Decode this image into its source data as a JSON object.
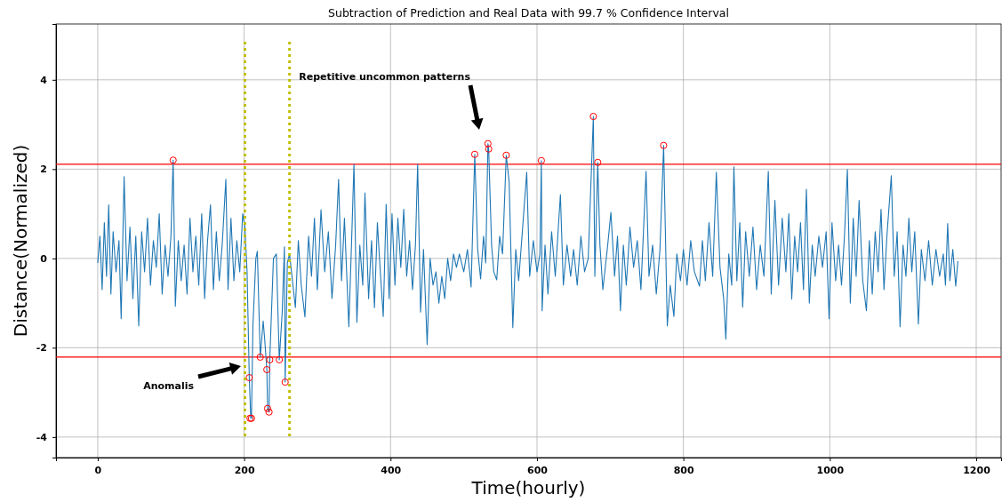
{
  "chart_data": {
    "type": "line",
    "title": "Subtraction of Prediction and Real Data with 99.7 % Confidence Interval",
    "xlabel": "Time(hourly)",
    "ylabel": "Distance(Normalized)",
    "xlim": [
      -57,
      1234
    ],
    "ylim": [
      -4.46,
      5.25
    ],
    "xticks": [
      0,
      200,
      400,
      600,
      800,
      1000,
      1200
    ],
    "yticks": [
      -4,
      -2,
      0,
      2,
      4
    ],
    "grid": true,
    "series": [
      {
        "color": "#1f77b4",
        "line_style": "solid",
        "x": [
          0,
          3,
          6,
          9,
          12,
          15,
          18,
          21,
          25,
          29,
          32,
          36,
          40,
          44,
          48,
          52,
          56,
          60,
          64,
          68,
          72,
          76,
          80,
          84,
          88,
          92,
          96,
          100,
          103,
          106,
          110,
          114,
          118,
          122,
          126,
          130,
          134,
          138,
          142,
          146,
          150,
          154,
          158,
          162,
          166,
          170,
          175,
          178,
          182,
          186,
          190,
          194,
          198,
          201,
          204,
          207,
          209,
          210,
          212,
          216,
          218,
          222,
          226,
          228,
          231,
          232,
          234,
          235,
          240,
          244,
          248,
          252,
          255,
          256,
          259,
          262,
          266,
          270,
          274,
          278,
          283,
          288,
          292,
          296,
          300,
          305,
          310,
          315,
          320,
          325,
          329,
          333,
          337,
          343,
          347,
          350,
          354,
          358,
          362,
          365,
          370,
          374,
          378,
          382,
          386,
          390,
          394,
          398,
          402,
          406,
          410,
          414,
          418,
          422,
          426,
          430,
          434,
          437,
          441,
          445,
          450,
          454,
          458,
          462,
          466,
          470,
          474,
          478,
          482,
          486,
          490,
          494,
          500,
          505,
          510,
          515,
          519,
          523,
          527,
          530,
          533,
          534,
          538,
          541,
          545,
          549,
          553,
          558,
          562,
          567,
          571,
          575,
          580,
          586,
          590,
          595,
          600,
          604,
          606,
          607,
          611,
          615,
          620,
          625,
          632,
          636,
          641,
          646,
          650,
          655,
          660,
          665,
          670,
          677,
          679,
          683,
          686,
          690,
          696,
          701,
          706,
          710,
          714,
          718,
          722,
          727,
          732,
          737,
          742,
          749,
          753,
          758,
          763,
          768,
          773,
          778,
          782,
          787,
          791,
          796,
          800,
          805,
          810,
          815,
          822,
          826,
          830,
          835,
          840,
          845,
          850,
          855,
          858,
          862,
          866,
          869,
          873,
          877,
          881,
          885,
          890,
          895,
          900,
          905,
          910,
          916,
          920,
          925,
          930,
          935,
          940,
          944,
          948,
          952,
          956,
          960,
          964,
          968,
          972,
          976,
          980,
          985,
          990,
          995,
          999,
          1003,
          1008,
          1012,
          1016,
          1020,
          1024,
          1028,
          1032,
          1036,
          1040,
          1045,
          1050,
          1054,
          1058,
          1062,
          1066,
          1070,
          1074,
          1078,
          1084,
          1088,
          1092,
          1096,
          1100,
          1104,
          1108,
          1112,
          1116,
          1121,
          1125,
          1130,
          1135,
          1140,
          1145,
          1150,
          1155,
          1158,
          1161,
          1164,
          1168,
          1172,
          1175
        ],
        "values": [
          -0.1,
          0.5,
          -0.7,
          0.8,
          -0.4,
          1.2,
          -0.8,
          0.6,
          -0.3,
          0.4,
          -1.35,
          1.83,
          -0.5,
          0.7,
          -0.9,
          0.5,
          -1.51,
          0.6,
          -0.3,
          0.9,
          -0.6,
          0.4,
          -0.2,
          1.0,
          -0.8,
          0.3,
          -0.4,
          0.5,
          2.2,
          -1.07,
          0.4,
          -0.5,
          0.3,
          -0.8,
          0.9,
          -0.3,
          0.5,
          -0.6,
          1.0,
          -0.9,
          0.4,
          1.2,
          -0.7,
          0.6,
          -0.5,
          0.3,
          1.77,
          -0.7,
          0.9,
          -0.5,
          0.4,
          -0.3,
          1.0,
          0.7,
          -0.3,
          -2.67,
          -3.58,
          -3.58,
          -1.5,
          0.0,
          0.16,
          -2.21,
          -1.4,
          -1.8,
          -2.49,
          -3.36,
          -3.44,
          -2.27,
          0.0,
          0.1,
          -2.27,
          -1.2,
          0.26,
          -2.77,
          -0.1,
          0.1,
          -0.5,
          -1.1,
          0.4,
          -0.6,
          -1.31,
          0.5,
          -0.4,
          0.9,
          -0.7,
          1.09,
          -0.3,
          0.6,
          -0.9,
          0.3,
          1.77,
          -0.5,
          0.9,
          -1.53,
          0.5,
          2.11,
          -1.43,
          0.3,
          -0.6,
          1.47,
          -0.9,
          0.4,
          -1.1,
          0.8,
          -0.3,
          -1.3,
          1.21,
          -0.9,
          1.0,
          -0.6,
          0.9,
          -0.2,
          1.1,
          -0.4,
          0.4,
          -0.7,
          0.3,
          2.11,
          -1.2,
          0.2,
          -1.93,
          0.0,
          -0.6,
          -0.3,
          -1.0,
          -0.4,
          -0.9,
          0.0,
          -0.5,
          0.1,
          -0.2,
          0.1,
          -0.3,
          0.2,
          -0.64,
          2.33,
          0.2,
          -0.46,
          0.5,
          -0.1,
          2.57,
          2.45,
          0.3,
          -0.3,
          -0.48,
          0.5,
          0.1,
          2.31,
          1.71,
          -1.55,
          0.2,
          -0.5,
          0.6,
          1.93,
          -0.4,
          0.4,
          -0.3,
          0.1,
          2.19,
          -1.17,
          0.3,
          -0.8,
          0.6,
          -0.4,
          1.43,
          -0.6,
          0.3,
          -0.4,
          0.2,
          -0.6,
          0.5,
          -0.3,
          0.0,
          3.18,
          -0.4,
          2.15,
          0.3,
          -0.7,
          0.2,
          1.03,
          -0.4,
          0.5,
          -1.17,
          0.3,
          -0.6,
          0.7,
          -0.2,
          0.4,
          -0.7,
          1.95,
          -0.4,
          0.3,
          -0.8,
          0.2,
          2.53,
          -1.51,
          -0.6,
          -1.3,
          0.1,
          -0.5,
          0.2,
          -0.6,
          0.4,
          -0.3,
          -0.62,
          0.4,
          -0.5,
          0.8,
          -0.4,
          1.93,
          -0.2,
          -0.9,
          -1.81,
          0.1,
          -0.6,
          2.05,
          -0.5,
          0.8,
          -1.09,
          0.6,
          -0.4,
          0.7,
          -0.7,
          0.3,
          -0.4,
          1.95,
          -0.8,
          1.3,
          -0.6,
          0.9,
          -0.3,
          1.0,
          -0.91,
          0.5,
          -0.3,
          0.8,
          -0.7,
          1.55,
          -1.0,
          0.3,
          -0.4,
          0.5,
          -0.2,
          0.6,
          -1.35,
          0.8,
          -0.5,
          0.3,
          -0.6,
          0.5,
          1.99,
          -1.0,
          0.9,
          -0.4,
          1.3,
          -0.5,
          -1.17,
          0.4,
          -0.8,
          0.6,
          -0.3,
          1.1,
          -0.7,
          0.5,
          1.85,
          -0.4,
          0.6,
          -1.53,
          0.3,
          -0.4,
          0.9,
          -0.3,
          0.6,
          -1.47,
          0.2,
          -0.5,
          0.4,
          -0.6,
          0.2,
          -0.4,
          0.1,
          -0.6,
          0.78,
          -0.5,
          0.2,
          -0.62,
          -0.06
        ]
      },
      {
        "type": "scatter",
        "color": "#ff0000",
        "marker": "circle",
        "x": [
          103,
          207,
          208,
          210,
          222,
          231,
          232,
          234,
          235,
          248,
          256,
          515,
          533,
          534,
          558,
          606,
          677,
          683,
          773
        ],
        "values": [
          2.2,
          -2.67,
          -3.58,
          -3.58,
          -2.21,
          -2.49,
          -3.36,
          -3.44,
          -2.27,
          -2.27,
          -2.77,
          2.33,
          2.57,
          2.45,
          2.31,
          2.19,
          3.18,
          2.15,
          2.53
        ]
      }
    ],
    "ref_lines": [
      {
        "axis": "y",
        "value": 2.11,
        "color": "#ff0000",
        "line_style": "solid"
      },
      {
        "axis": "y",
        "value": -2.21,
        "color": "#ff0000",
        "line_style": "solid"
      },
      {
        "axis": "x",
        "value": 201,
        "color": "#bfbf00",
        "line_style": "dotted"
      },
      {
        "axis": "x",
        "value": 262,
        "color": "#bfbf00",
        "line_style": "dotted"
      }
    ],
    "annotations": [
      "Anomalis",
      "Repetitive uncommon patterns"
    ]
  }
}
